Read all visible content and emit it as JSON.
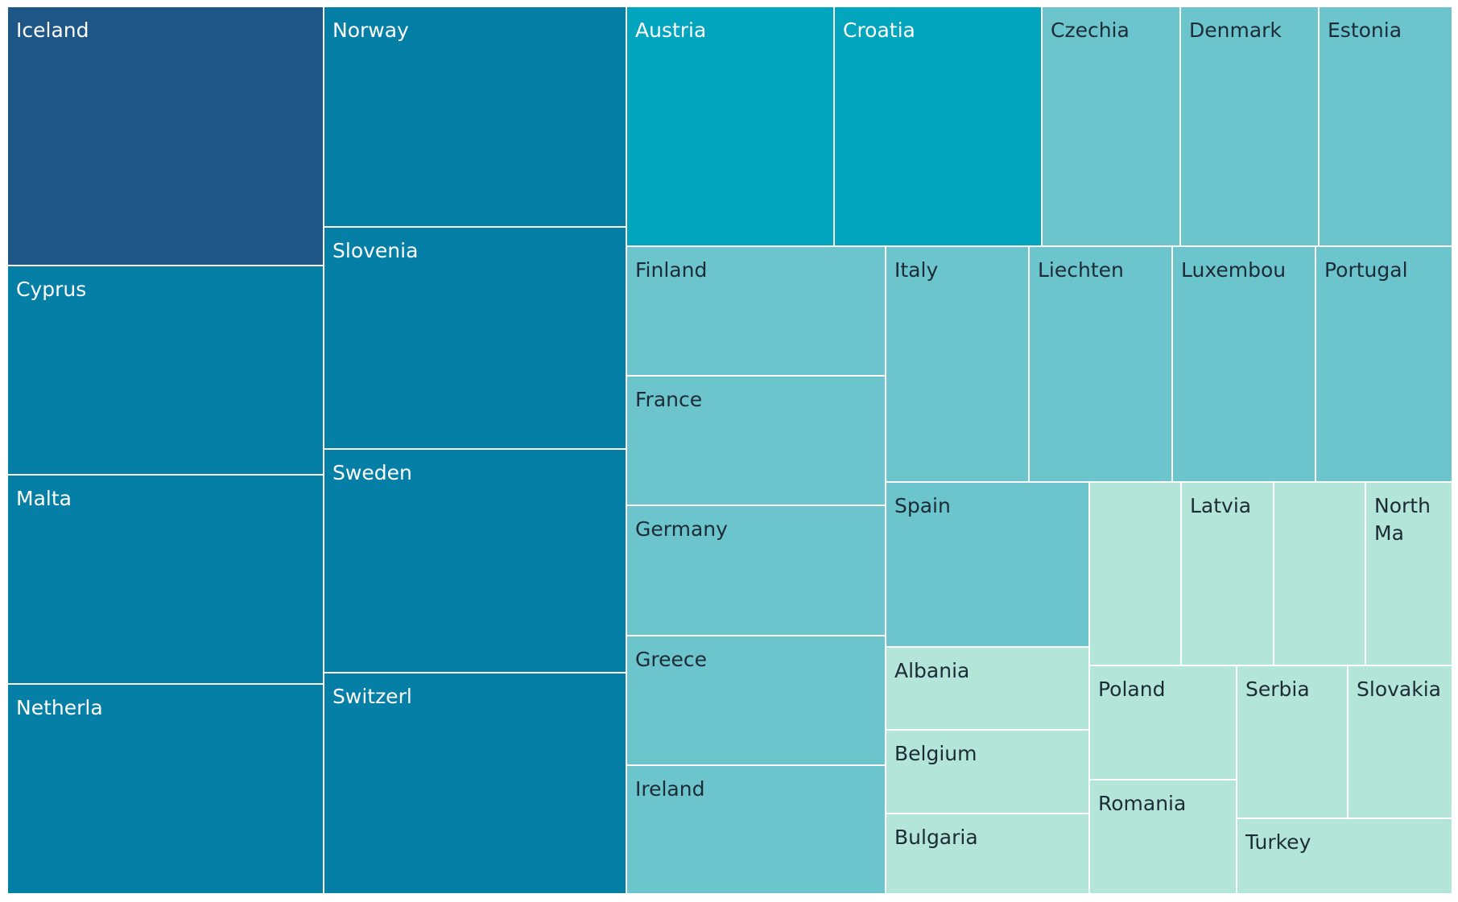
{
  "chart_data": {
    "type": "treemap",
    "title": "",
    "legend": "none",
    "colors": {
      "dark_navy": "#1e5787",
      "dark_teal": "#057fa6",
      "teal": "#02a5be",
      "light_teal": "#6cc5cd",
      "mint": "#b3e6d9"
    },
    "tiles": [
      {
        "label": "Iceland",
        "color_group": "dark_navy"
      },
      {
        "label": "Cyprus",
        "color_group": "dark_teal"
      },
      {
        "label": "Malta",
        "color_group": "dark_teal"
      },
      {
        "label": "Netherla",
        "color_group": "dark_teal"
      },
      {
        "label": "Norway",
        "color_group": "dark_teal"
      },
      {
        "label": "Slovenia",
        "color_group": "dark_teal"
      },
      {
        "label": "Sweden",
        "color_group": "dark_teal"
      },
      {
        "label": "Switzerl",
        "color_group": "dark_teal"
      },
      {
        "label": "Austria",
        "color_group": "teal"
      },
      {
        "label": "Croatia",
        "color_group": "teal"
      },
      {
        "label": "Czechia",
        "color_group": "light_teal"
      },
      {
        "label": "Denmark",
        "color_group": "light_teal"
      },
      {
        "label": "Estonia",
        "color_group": "light_teal"
      },
      {
        "label": "Finland",
        "color_group": "light_teal"
      },
      {
        "label": "France",
        "color_group": "light_teal"
      },
      {
        "label": "Germany",
        "color_group": "light_teal"
      },
      {
        "label": "Greece",
        "color_group": "light_teal"
      },
      {
        "label": "Ireland",
        "color_group": "light_teal"
      },
      {
        "label": "Italy",
        "color_group": "light_teal"
      },
      {
        "label": "Liechten",
        "color_group": "light_teal"
      },
      {
        "label": "Luxembou",
        "color_group": "light_teal"
      },
      {
        "label": "Portugal",
        "color_group": "light_teal"
      },
      {
        "label": "Spain",
        "color_group": "light_teal"
      },
      {
        "label": "Albania",
        "color_group": "mint"
      },
      {
        "label": "Belgium",
        "color_group": "mint"
      },
      {
        "label": "Bulgaria",
        "color_group": "mint"
      },
      {
        "label": "",
        "color_group": "mint"
      },
      {
        "label": "Latvia",
        "color_group": "mint"
      },
      {
        "label": "",
        "color_group": "mint"
      },
      {
        "label": "North Ma",
        "color_group": "mint"
      },
      {
        "label": "Poland",
        "color_group": "mint"
      },
      {
        "label": "Romania",
        "color_group": "mint"
      },
      {
        "label": "Serbia",
        "color_group": "mint"
      },
      {
        "label": "Slovakia",
        "color_group": "mint"
      },
      {
        "label": "Turkey",
        "color_group": "mint"
      }
    ]
  }
}
